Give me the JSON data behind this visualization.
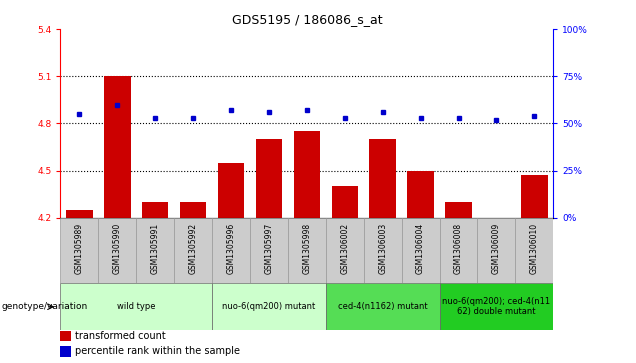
{
  "title": "GDS5195 / 186086_s_at",
  "samples": [
    "GSM1305989",
    "GSM1305990",
    "GSM1305991",
    "GSM1305992",
    "GSM1305996",
    "GSM1305997",
    "GSM1305998",
    "GSM1306002",
    "GSM1306003",
    "GSM1306004",
    "GSM1306008",
    "GSM1306009",
    "GSM1306010"
  ],
  "transformed_count": [
    4.25,
    5.1,
    4.3,
    4.3,
    4.55,
    4.7,
    4.75,
    4.4,
    4.7,
    4.5,
    4.3,
    4.2,
    4.47
  ],
  "percentile_rank": [
    55,
    60,
    53,
    53,
    57,
    56,
    57,
    53,
    56,
    53,
    53,
    52,
    54
  ],
  "ylim_left": [
    4.2,
    5.4
  ],
  "ylim_right": [
    0,
    100
  ],
  "yticks_left": [
    4.2,
    4.5,
    4.8,
    5.1,
    5.4
  ],
  "yticks_right": [
    0,
    25,
    50,
    75,
    100
  ],
  "hlines": [
    4.5,
    4.8,
    5.1
  ],
  "bar_color": "#cc0000",
  "dot_color": "#0000cc",
  "groups": [
    {
      "label": "wild type",
      "indices": [
        0,
        1,
        2,
        3
      ],
      "color": "#ccffcc"
    },
    {
      "label": "nuo-6(qm200) mutant",
      "indices": [
        4,
        5,
        6
      ],
      "color": "#ccffcc"
    },
    {
      "label": "ced-4(n1162) mutant",
      "indices": [
        7,
        8,
        9
      ],
      "color": "#55dd55"
    },
    {
      "label": "nuo-6(qm200); ced-4(n11\n62) double mutant",
      "indices": [
        10,
        11,
        12
      ],
      "color": "#22cc22"
    }
  ],
  "xlabel_genotype": "genotype/variation",
  "legend_items": [
    {
      "color": "#cc0000",
      "label": "transformed count"
    },
    {
      "color": "#0000cc",
      "label": "percentile rank within the sample"
    }
  ],
  "title_fontsize": 9,
  "tick_fontsize": 6.5,
  "label_fontsize": 5.5,
  "group_fontsize": 6,
  "legend_fontsize": 7
}
